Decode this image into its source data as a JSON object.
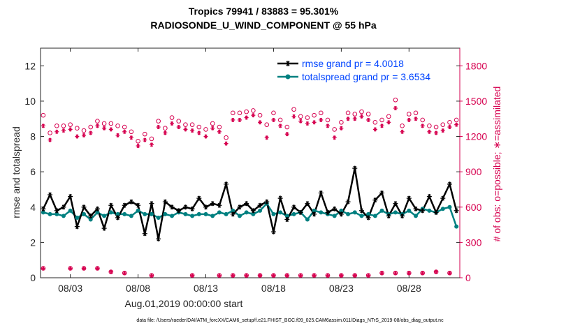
{
  "chart_data": {
    "type": "line",
    "title": "Tropics 79941 / 83883 = 95.301%",
    "subtitle": "RADIOSONDE_U_WIND_COMPONENT @ 55 hPa",
    "xlabel": "Aug.01,2019 00:00:00 start",
    "ylabel": "rmse and totalspread",
    "y2label": "# of obs: o=possible; ∗=assimilated",
    "xlim_days": [
      0.8,
      31.75
    ],
    "ylim": [
      0,
      13
    ],
    "y2lim": [
      0,
      1950
    ],
    "x_ticks": [
      {
        "day": 3,
        "label": "08/03"
      },
      {
        "day": 8,
        "label": "08/08"
      },
      {
        "day": 13,
        "label": "08/13"
      },
      {
        "day": 18,
        "label": "08/18"
      },
      {
        "day": 23,
        "label": "08/23"
      },
      {
        "day": 28,
        "label": "08/28"
      }
    ],
    "y_ticks": [
      0,
      2,
      4,
      6,
      8,
      10,
      12
    ],
    "y2_ticks": [
      0,
      300,
      600,
      900,
      1200,
      1500,
      1800
    ],
    "grid": false,
    "legend_placement": "top-right",
    "x_days": [
      1.0,
      1.5,
      2.0,
      2.5,
      3.0,
      3.5,
      4.0,
      4.5,
      5.0,
      5.5,
      6.0,
      6.5,
      7.0,
      7.5,
      8.0,
      8.5,
      9.0,
      9.5,
      10.0,
      10.5,
      11.0,
      11.5,
      12.0,
      12.5,
      13.0,
      13.5,
      14.0,
      14.5,
      15.0,
      15.5,
      16.0,
      16.5,
      17.0,
      17.5,
      18.0,
      18.5,
      19.0,
      19.5,
      20.0,
      20.5,
      21.0,
      21.5,
      22.0,
      22.5,
      23.0,
      23.5,
      24.0,
      24.5,
      25.0,
      25.5,
      26.0,
      26.5,
      27.0,
      27.5,
      28.0,
      28.5,
      29.0,
      29.5,
      30.0,
      30.5,
      31.0,
      31.5
    ],
    "series": [
      {
        "name": "rmse grand pr = 4.0018",
        "color": "#000000",
        "marker": "asterisk",
        "values": [
          3.9,
          4.7,
          3.8,
          4.0,
          4.6,
          2.9,
          4.0,
          3.5,
          3.9,
          2.8,
          4.1,
          3.4,
          4.1,
          4.3,
          4.1,
          2.5,
          4.2,
          2.2,
          4.3,
          4.0,
          3.8,
          4.0,
          3.9,
          4.5,
          4.0,
          4.2,
          4.1,
          5.3,
          3.6,
          4.0,
          4.2,
          3.8,
          4.1,
          4.3,
          2.6,
          4.5,
          3.3,
          4.0,
          3.7,
          4.2,
          3.6,
          4.8,
          3.7,
          3.9,
          3.6,
          4.3,
          6.2,
          3.8,
          3.4,
          4.4,
          4.8,
          3.5,
          4.2,
          3.5,
          4.5,
          3.9,
          3.8,
          4.6,
          3.7,
          4.5,
          5.3,
          3.8
        ]
      },
      {
        "name": "totalspread grand pr = 3.6534",
        "color": "#008080",
        "marker": "dot",
        "values": [
          3.7,
          3.6,
          3.6,
          3.5,
          3.8,
          3.4,
          3.6,
          3.3,
          3.7,
          3.5,
          3.7,
          3.6,
          3.6,
          3.5,
          3.8,
          3.6,
          3.6,
          3.4,
          3.6,
          3.5,
          3.7,
          3.6,
          3.5,
          3.6,
          3.6,
          3.5,
          3.7,
          3.6,
          3.8,
          3.5,
          3.7,
          3.6,
          3.8,
          4.2,
          3.6,
          3.7,
          3.5,
          3.6,
          3.7,
          3.3,
          3.8,
          3.7,
          3.6,
          3.5,
          3.8,
          3.6,
          3.7,
          3.5,
          3.6,
          3.5,
          3.8,
          3.6,
          3.7,
          3.6,
          3.8,
          3.5,
          3.9,
          3.8,
          3.7,
          3.9,
          4.0,
          2.9
        ]
      }
    ],
    "obs_series": [
      {
        "name": "possible",
        "color": "#d6004f",
        "marker": "circle",
        "values": [
          1380,
          1230,
          1290,
          1290,
          1300,
          1270,
          1250,
          1280,
          1330,
          1310,
          1310,
          1290,
          1280,
          1240,
          1160,
          1220,
          1180,
          1330,
          1270,
          1360,
          1330,
          1300,
          1300,
          1280,
          1260,
          1310,
          1280,
          1190,
          1400,
          1400,
          1410,
          1420,
          1380,
          1300,
          1400,
          1340,
          1280,
          1430,
          1370,
          1360,
          1380,
          1400,
          1340,
          1260,
          1320,
          1400,
          1390,
          1410,
          1390,
          1320,
          1340,
          1370,
          1510,
          1290,
          1390,
          1400,
          1340,
          1290,
          1280,
          1300,
          1320,
          1340
        ]
      },
      {
        "name": "assimilated",
        "color": "#d6004f",
        "marker": "asterisk",
        "values": [
          1290,
          1170,
          1240,
          1250,
          1260,
          1200,
          1210,
          1230,
          1290,
          1270,
          1260,
          1210,
          1240,
          1190,
          1120,
          1170,
          1130,
          1280,
          1230,
          1310,
          1280,
          1260,
          1250,
          1230,
          1200,
          1270,
          1240,
          1140,
          1340,
          1340,
          1360,
          1380,
          1320,
          1190,
          1340,
          1290,
          1220,
          1370,
          1330,
          1310,
          1320,
          1340,
          1290,
          1190,
          1270,
          1350,
          1350,
          1370,
          1340,
          1260,
          1290,
          1320,
          1440,
          1240,
          1340,
          1350,
          1290,
          1240,
          1230,
          1250,
          1280,
          1300
        ]
      }
    ],
    "low_obs": {
      "days": [
        1,
        3,
        4,
        5,
        6,
        7,
        9,
        12,
        14,
        15,
        16,
        17,
        18,
        19,
        20,
        21,
        22,
        23,
        24,
        25,
        26,
        27,
        28,
        29,
        30,
        31
      ],
      "values": [
        80,
        80,
        80,
        80,
        50,
        40,
        20,
        20,
        20,
        20,
        20,
        20,
        20,
        20,
        20,
        20,
        20,
        20,
        20,
        20,
        40,
        40,
        40,
        40,
        50,
        40
      ]
    }
  },
  "footer": "data file: /Users/raeder/DAI/ATM_forcXX/CAM6_setup/f.e21.FHIST_BGC.f09_025.CAM6assim.011/Diags_NTrS_2019-08/obs_diag_output.nc",
  "legend": {
    "rmse": "rmse grand pr = 4.0018",
    "spread": "totalspread grand pr = 3.6534"
  }
}
